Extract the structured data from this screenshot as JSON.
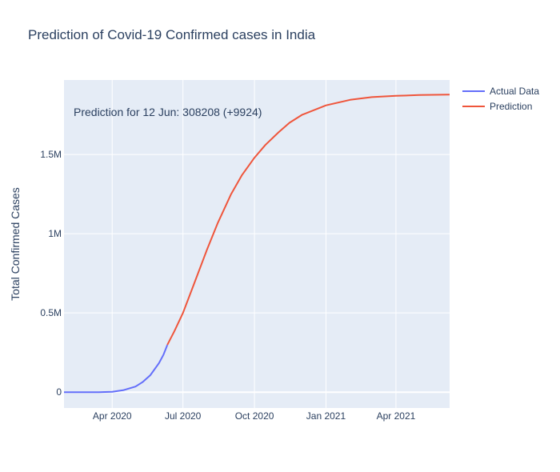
{
  "chart_data": {
    "type": "line",
    "title": "Prediction of Covid-19 Confirmed cases in India",
    "xlabel": "",
    "ylabel": "Total Confirmed Cases",
    "x_tick_labels": [
      "Apr 2020",
      "Jul 2020",
      "Oct 2020",
      "Jan 2021",
      "Apr 2021"
    ],
    "x_tick_dates": [
      "2020-04-01",
      "2020-07-01",
      "2020-10-01",
      "2021-01-01",
      "2021-04-01"
    ],
    "y_tick_labels": [
      "0",
      "0.5M",
      "1M",
      "1.5M"
    ],
    "y_tick_values": [
      0,
      500000,
      1000000,
      1500000
    ],
    "xlim": [
      "2020-01-30",
      "2021-06-09"
    ],
    "ylim": [
      -100000,
      1970000
    ],
    "grid": true,
    "legend_position": "top-right",
    "annotation": "Prediction for 12 Jun: 308208 (+9924)",
    "series": [
      {
        "name": "Actual Data",
        "color": "#636efa",
        "points": [
          [
            "2020-01-30",
            1
          ],
          [
            "2020-02-15",
            3
          ],
          [
            "2020-03-01",
            3
          ],
          [
            "2020-03-15",
            107
          ],
          [
            "2020-04-01",
            1998
          ],
          [
            "2020-04-15",
            11933
          ],
          [
            "2020-05-01",
            35365
          ],
          [
            "2020-05-10",
            62939
          ],
          [
            "2020-05-20",
            106750
          ],
          [
            "2020-05-31",
            182143
          ],
          [
            "2020-06-06",
            236657
          ],
          [
            "2020-06-11",
            298284
          ]
        ]
      },
      {
        "name": "Prediction",
        "color": "#ef553b",
        "points": [
          [
            "2020-06-11",
            298284
          ],
          [
            "2020-06-12",
            308208
          ],
          [
            "2020-06-20",
            385000
          ],
          [
            "2020-07-01",
            500000
          ],
          [
            "2020-07-15",
            680000
          ],
          [
            "2020-08-01",
            900000
          ],
          [
            "2020-08-15",
            1070000
          ],
          [
            "2020-09-01",
            1250000
          ],
          [
            "2020-09-15",
            1370000
          ],
          [
            "2020-10-01",
            1480000
          ],
          [
            "2020-10-15",
            1560000
          ],
          [
            "2020-11-01",
            1640000
          ],
          [
            "2020-11-15",
            1700000
          ],
          [
            "2020-12-01",
            1750000
          ],
          [
            "2021-01-01",
            1810000
          ],
          [
            "2021-02-01",
            1845000
          ],
          [
            "2021-03-01",
            1862000
          ],
          [
            "2021-04-01",
            1870000
          ],
          [
            "2021-05-01",
            1875000
          ],
          [
            "2021-06-09",
            1878000
          ]
        ]
      }
    ]
  }
}
